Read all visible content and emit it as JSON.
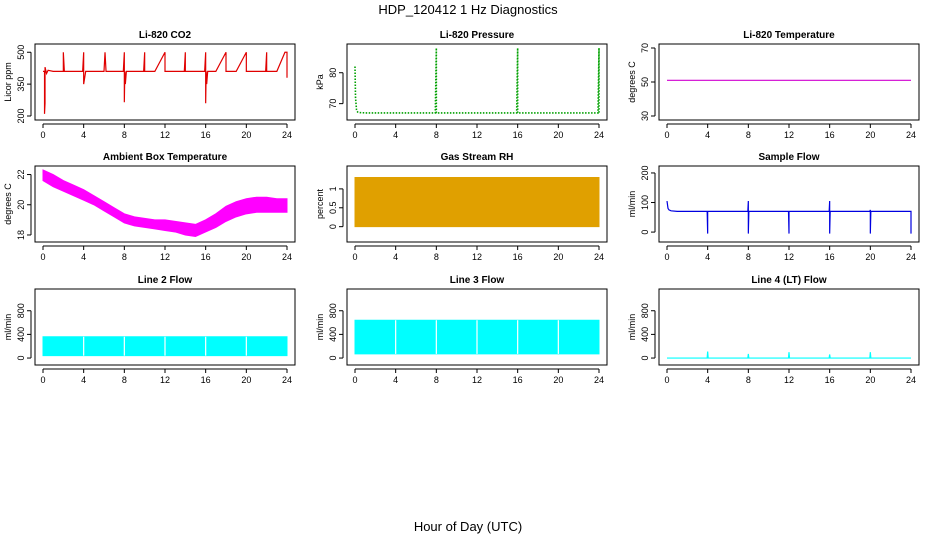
{
  "figure": {
    "title": "HDP_120412  1 Hz Diagnostics",
    "xlabel": "Hour of Day (UTC)"
  },
  "chart_data": [
    {
      "type": "line",
      "title": "Li-820 CO2",
      "ylabel": "Licor ppm",
      "xlim": [
        0,
        24
      ],
      "ylim": [
        200,
        520
      ],
      "yticks": [
        200,
        350,
        500
      ],
      "xticks": [
        0,
        4,
        8,
        12,
        16,
        20,
        24
      ],
      "color": "#e00000",
      "style": "line",
      "series": [
        {
          "x": [
            0,
            0.15,
            0.15,
            0.2,
            0.2,
            0.35,
            0.5,
            1,
            2,
            2,
            2.1,
            2.2,
            3,
            3.9,
            4,
            4,
            4.2,
            5,
            6,
            6.1,
            6.2,
            7,
            7.9,
            8,
            8,
            8.05,
            8.1,
            8.2,
            9,
            9.9,
            10,
            10,
            10.2,
            11,
            12,
            12,
            12.2,
            13,
            13.9,
            14,
            14,
            14.2,
            15,
            15.9,
            16,
            16,
            16.05,
            16.1,
            16.2,
            17,
            18,
            18,
            18.2,
            19,
            20,
            20,
            20.2,
            21,
            21.9,
            22,
            22,
            22.2,
            23,
            23.8,
            24,
            24
          ],
          "y": [
            410,
            410,
            210,
            260,
            430,
            400,
            415,
            410,
            410,
            500,
            410,
            410,
            410,
            410,
            500,
            350,
            410,
            410,
            410,
            500,
            410,
            410,
            410,
            500,
            265,
            410,
            350,
            410,
            410,
            410,
            500,
            410,
            410,
            410,
            500,
            410,
            410,
            410,
            410,
            500,
            410,
            410,
            410,
            410,
            500,
            260,
            410,
            350,
            410,
            410,
            500,
            410,
            410,
            410,
            500,
            410,
            410,
            410,
            410,
            500,
            410,
            410,
            410,
            500,
            500,
            380
          ]
        }
      ]
    },
    {
      "type": "line",
      "title": "Li-820 Pressure",
      "ylabel": "kPa",
      "xlim": [
        0,
        24
      ],
      "ylim": [
        66,
        88
      ],
      "yticks": [
        70,
        80
      ],
      "xticks": [
        0,
        4,
        8,
        12,
        16,
        20,
        24
      ],
      "color": "#00a000",
      "style": "dotted",
      "series": [
        {
          "x": [
            0,
            0.05,
            0.1,
            0.15,
            0.2,
            0.3,
            0.5,
            1,
            7.9,
            8,
            8,
            8.1,
            15.9,
            16,
            16,
            16.1,
            23.9,
            24,
            24
          ],
          "y": [
            82,
            72,
            70,
            68,
            67.5,
            67.2,
            67.1,
            67,
            67,
            88,
            67,
            67,
            67,
            88,
            67,
            67,
            67,
            88,
            67
          ]
        }
      ]
    },
    {
      "type": "line",
      "title": "Li-820 Temperature",
      "ylabel": "degrees C",
      "xlim": [
        0,
        24
      ],
      "ylim": [
        30,
        70
      ],
      "yticks": [
        30,
        50,
        70
      ],
      "xticks": [
        0,
        4,
        8,
        12,
        16,
        20,
        24
      ],
      "color": "#d000d0",
      "style": "line",
      "series": [
        {
          "x": [
            0,
            24
          ],
          "y": [
            51,
            51
          ]
        }
      ]
    },
    {
      "type": "band",
      "title": "Ambient Box Temperature",
      "ylabel": "degrees C",
      "xlim": [
        0,
        24
      ],
      "ylim": [
        17.8,
        22.3
      ],
      "yticks": [
        18,
        20,
        22
      ],
      "xticks": [
        0,
        4,
        8,
        12,
        16,
        20,
        24
      ],
      "color": "#ff00ff",
      "series": [
        {
          "x": [
            0,
            1,
            2,
            3,
            4,
            5,
            6,
            7,
            8,
            9,
            10,
            11,
            12,
            13,
            14,
            15,
            16,
            17,
            18,
            19,
            20,
            21,
            22,
            23,
            24
          ],
          "y_low": [
            21.6,
            21.2,
            20.9,
            20.6,
            20.3,
            20.0,
            19.6,
            19.2,
            18.8,
            18.6,
            18.5,
            18.4,
            18.3,
            18.2,
            18.0,
            17.9,
            18.2,
            18.5,
            18.9,
            19.2,
            19.4,
            19.5,
            19.5,
            19.5,
            19.5
          ],
          "y_high": [
            22.3,
            22.0,
            21.6,
            21.3,
            21.0,
            20.6,
            20.2,
            19.8,
            19.4,
            19.2,
            19.1,
            19.0,
            19.0,
            18.9,
            18.8,
            18.7,
            19.0,
            19.4,
            19.9,
            20.2,
            20.4,
            20.5,
            20.5,
            20.4,
            20.4
          ]
        }
      ]
    },
    {
      "type": "band",
      "title": "Gas Stream RH",
      "ylabel": "percent",
      "xlim": [
        0,
        24
      ],
      "ylim": [
        -0.3,
        1.5
      ],
      "yticks": [
        0.0,
        0.5,
        1.0
      ],
      "xticks": [
        0,
        4,
        8,
        12,
        16,
        20,
        24
      ],
      "color": "#e0a000",
      "series": [
        {
          "x": [
            0,
            24
          ],
          "y_low": [
            0.0,
            0.0
          ],
          "y_high": [
            1.3,
            1.3
          ]
        }
      ]
    },
    {
      "type": "line",
      "title": "Sample Flow",
      "ylabel": "ml/min",
      "xlim": [
        0,
        24
      ],
      "ylim": [
        -20,
        210
      ],
      "yticks": [
        0,
        100,
        200
      ],
      "xticks": [
        0,
        4,
        8,
        12,
        16,
        20,
        24
      ],
      "color": "#0000e0",
      "style": "line",
      "series": [
        {
          "x": [
            0,
            0.1,
            0.2,
            0.4,
            1,
            3.95,
            4,
            4,
            4.05,
            7.95,
            8,
            8,
            8.05,
            11.95,
            12,
            12,
            12.05,
            15.95,
            16,
            16,
            16.05,
            19.95,
            20,
            20,
            20.05,
            23.95,
            24,
            24
          ],
          "y": [
            105,
            80,
            75,
            72,
            70,
            70,
            -5,
            70,
            70,
            70,
            105,
            -5,
            70,
            70,
            -5,
            70,
            70,
            70,
            105,
            -5,
            70,
            70,
            75,
            -5,
            70,
            70,
            70,
            -5
          ]
        }
      ]
    },
    {
      "type": "band",
      "title": "Line 2 Flow",
      "ylabel": "ml/min",
      "xlim": [
        0,
        24
      ],
      "ylim": [
        -50,
        1100
      ],
      "yticks": [
        0,
        400,
        800
      ],
      "xticks": [
        0,
        4,
        8,
        12,
        16,
        20,
        24
      ],
      "color": "#00ffff",
      "series": [
        {
          "x": [
            0,
            24
          ],
          "y_low": [
            40,
            40
          ],
          "y_high": [
            360,
            360
          ]
        }
      ]
    },
    {
      "type": "band",
      "title": "Line 3 Flow",
      "ylabel": "ml/min",
      "xlim": [
        0,
        24
      ],
      "ylim": [
        -50,
        1100
      ],
      "yticks": [
        0,
        400,
        800
      ],
      "xticks": [
        0,
        4,
        8,
        12,
        16,
        20,
        24
      ],
      "color": "#00ffff",
      "series": [
        {
          "x": [
            0,
            24
          ],
          "y_low": [
            70,
            70
          ],
          "y_high": [
            640,
            640
          ]
        }
      ]
    },
    {
      "type": "line",
      "title": "Line 4 (LT) Flow",
      "ylabel": "ml/min",
      "xlim": [
        0,
        24
      ],
      "ylim": [
        -50,
        1100
      ],
      "yticks": [
        0,
        400,
        800
      ],
      "xticks": [
        0,
        4,
        8,
        12,
        16,
        20,
        24
      ],
      "color": "#00ffff",
      "style": "line",
      "series": [
        {
          "x": [
            0,
            3.95,
            4,
            4.05,
            7.95,
            8,
            8.05,
            11.95,
            12,
            12.05,
            15.95,
            16,
            16.05,
            19.95,
            20,
            20.05,
            24
          ],
          "y": [
            0,
            0,
            110,
            0,
            0,
            70,
            0,
            0,
            100,
            0,
            0,
            60,
            0,
            0,
            100,
            0,
            0
          ]
        }
      ]
    }
  ]
}
